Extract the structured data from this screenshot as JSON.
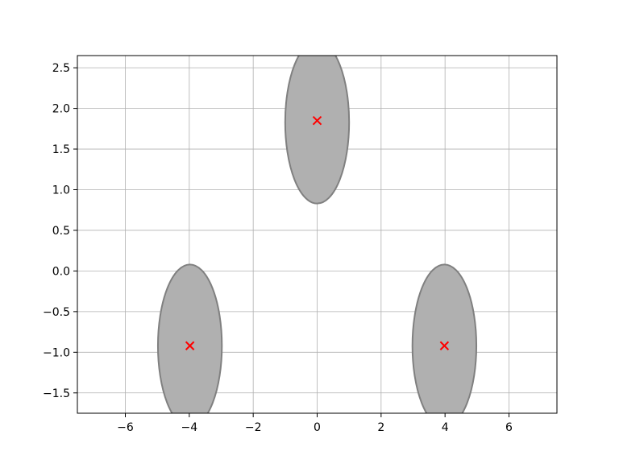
{
  "chart_data": {
    "type": "scatter",
    "title": "",
    "xlabel": "",
    "ylabel": "",
    "xlim": [
      -7.5,
      7.5
    ],
    "ylim": [
      -1.75,
      2.65
    ],
    "xticks": [
      -6,
      -4,
      -2,
      0,
      2,
      4,
      6
    ],
    "xtick_labels": [
      "−6",
      "−4",
      "−2",
      "0",
      "2",
      "4",
      "6"
    ],
    "yticks": [
      -1.5,
      -1.0,
      -0.5,
      0.0,
      0.5,
      1.0,
      1.5,
      2.0,
      2.5
    ],
    "ytick_labels": [
      "−1.5",
      "−1.0",
      "−0.5",
      "0.0",
      "0.5",
      "1.0",
      "1.5",
      "2.0",
      "2.5"
    ],
    "grid": true,
    "points": [
      {
        "x": -3.98,
        "y": -0.92
      },
      {
        "x": 0.0,
        "y": 1.85
      },
      {
        "x": 3.98,
        "y": -0.92
      }
    ],
    "ellipses": [
      {
        "cx": -3.98,
        "cy": -0.92,
        "rx": 1.0,
        "ry": 1.0
      },
      {
        "cx": 0.0,
        "cy": 1.83,
        "rx": 1.0,
        "ry": 1.0
      },
      {
        "cx": 3.98,
        "cy": -0.92,
        "rx": 1.0,
        "ry": 1.0
      }
    ],
    "colors": {
      "marker": "#ff0000",
      "ellipse_fill": "#b0b0b0",
      "ellipse_edge": "#808080",
      "grid": "#b0b0b0",
      "axes": "#000000"
    }
  }
}
